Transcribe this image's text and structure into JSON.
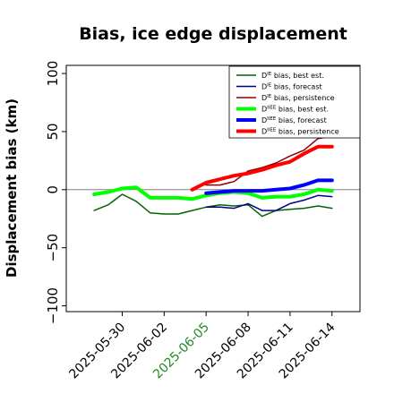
{
  "chart_data": {
    "type": "line",
    "title": "Bias, ice edge displacement",
    "ylabel": "Displacement bias (km)",
    "xlabel": "",
    "ylim": [
      -105,
      107
    ],
    "xlim": [
      "2025-05-26",
      "2025-06-16"
    ],
    "yticks": [
      -100,
      -50,
      0,
      50,
      100
    ],
    "yticklabels": [
      "−100",
      "−50",
      "0",
      "50",
      "100"
    ],
    "xticks": [
      "2025-05-30",
      "2025-06-02",
      "2025-06-05",
      "2025-06-08",
      "2025-06-11",
      "2025-06-14"
    ],
    "xtick_colors": [
      "#000000",
      "#000000",
      "#228b22",
      "#000000",
      "#000000",
      "#000000"
    ],
    "grid": false,
    "legend": "top-right",
    "zero_line_color": "#808080",
    "series": [
      {
        "name": "D^IE bias, best est.",
        "label_main": "D",
        "label_sup": "IE",
        "label_rest": " bias, best est.",
        "color": "#006400",
        "width": 1.5,
        "x": [
          "2025-05-28",
          "2025-05-29",
          "2025-05-30",
          "2025-05-31",
          "2025-06-01",
          "2025-06-02",
          "2025-06-03",
          "2025-06-04",
          "2025-06-05",
          "2025-06-06",
          "2025-06-07",
          "2025-06-08",
          "2025-06-09",
          "2025-06-10",
          "2025-06-11",
          "2025-06-12",
          "2025-06-13",
          "2025-06-14"
        ],
        "y": [
          -18,
          -13,
          -4,
          -10,
          -20,
          -21,
          -21,
          -18,
          -15,
          -13,
          -14,
          -13,
          -23,
          -18,
          -17,
          -16,
          -14,
          -16
        ]
      },
      {
        "name": "D^IE bias, forecast",
        "label_main": "D",
        "label_sup": "IE",
        "label_rest": " bias, forecast",
        "color": "#00008b",
        "width": 1.5,
        "x": [
          "2025-06-05",
          "2025-06-06",
          "2025-06-07",
          "2025-06-08",
          "2025-06-09",
          "2025-06-10",
          "2025-06-11",
          "2025-06-12",
          "2025-06-13",
          "2025-06-14"
        ],
        "y": [
          -15,
          -15,
          -16,
          -12,
          -18,
          -18,
          -12,
          -9,
          -5,
          -6
        ]
      },
      {
        "name": "D^IE bias, persistence",
        "label_main": "D",
        "label_sup": "IE",
        "label_rest": " bias, persistence",
        "color": "#8b0000",
        "width": 1.5,
        "x": [
          "2025-06-05",
          "2025-06-06",
          "2025-06-07",
          "2025-06-08",
          "2025-06-09",
          "2025-06-10",
          "2025-06-11",
          "2025-06-12",
          "2025-06-13",
          "2025-06-14"
        ],
        "y": [
          4,
          4,
          7,
          16,
          19,
          23,
          29,
          34,
          44,
          46
        ]
      },
      {
        "name": "D^IIEE bias, best est.",
        "label_main": "D",
        "label_sup": "IIEE",
        "label_rest": " bias, best est.",
        "color": "#00ff00",
        "width": 4,
        "x": [
          "2025-05-28",
          "2025-05-29",
          "2025-05-30",
          "2025-05-31",
          "2025-06-01",
          "2025-06-02",
          "2025-06-03",
          "2025-06-04",
          "2025-06-05",
          "2025-06-06",
          "2025-06-07",
          "2025-06-08",
          "2025-06-09",
          "2025-06-10",
          "2025-06-11",
          "2025-06-12",
          "2025-06-13",
          "2025-06-14"
        ],
        "y": [
          -4,
          -2,
          1,
          2,
          -7,
          -7,
          -7,
          -8,
          -5,
          -3,
          -2,
          -3,
          -7,
          -6,
          -6,
          -4,
          0,
          -1
        ]
      },
      {
        "name": "D^IIEE bias, forecast",
        "label_main": "D",
        "label_sup": "IIEE",
        "label_rest": " bias, forecast",
        "color": "#0000ff",
        "width": 4,
        "x": [
          "2025-06-05",
          "2025-06-06",
          "2025-06-07",
          "2025-06-08",
          "2025-06-09",
          "2025-06-10",
          "2025-06-11",
          "2025-06-12",
          "2025-06-13",
          "2025-06-14"
        ],
        "y": [
          -3,
          -2,
          -1,
          -1,
          -1,
          0,
          1,
          4,
          8,
          8
        ]
      },
      {
        "name": "D^IIEE bias, persistence",
        "label_main": "D",
        "label_sup": "IIEE",
        "label_rest": " bias, persistence",
        "color": "#ff0000",
        "width": 4,
        "x": [
          "2025-06-04",
          "2025-06-05",
          "2025-06-06",
          "2025-06-07",
          "2025-06-08",
          "2025-06-09",
          "2025-06-10",
          "2025-06-11",
          "2025-06-12",
          "2025-06-13",
          "2025-06-14"
        ],
        "y": [
          0,
          6,
          9,
          12,
          14,
          17,
          21,
          24,
          31,
          37,
          37
        ]
      }
    ]
  }
}
